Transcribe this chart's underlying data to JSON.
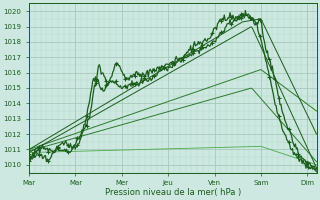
{
  "xlabel": "Pression niveau de la mer( hPa )",
  "bg_color": "#cce8e0",
  "plot_bg_color": "#cce8e0",
  "grid_color_major": "#a8c8bc",
  "grid_color_minor": "#b8d8cc",
  "line_color_dark": "#1a5c1a",
  "line_color_mid": "#2d7a2d",
  "line_color_light": "#4aaa4a",
  "ylim": [
    1009.5,
    1020.5
  ],
  "ytick_vals": [
    1010,
    1011,
    1012,
    1013,
    1014,
    1015,
    1016,
    1017,
    1018,
    1019,
    1020
  ],
  "day_positions": [
    0,
    1,
    2,
    3,
    4,
    5,
    6
  ],
  "day_labels": [
    "Mar",
    "Mar",
    "Mer",
    "Jeu",
    "Ven",
    "Sam",
    "Dim"
  ],
  "xlim": [
    0,
    6.2
  ]
}
